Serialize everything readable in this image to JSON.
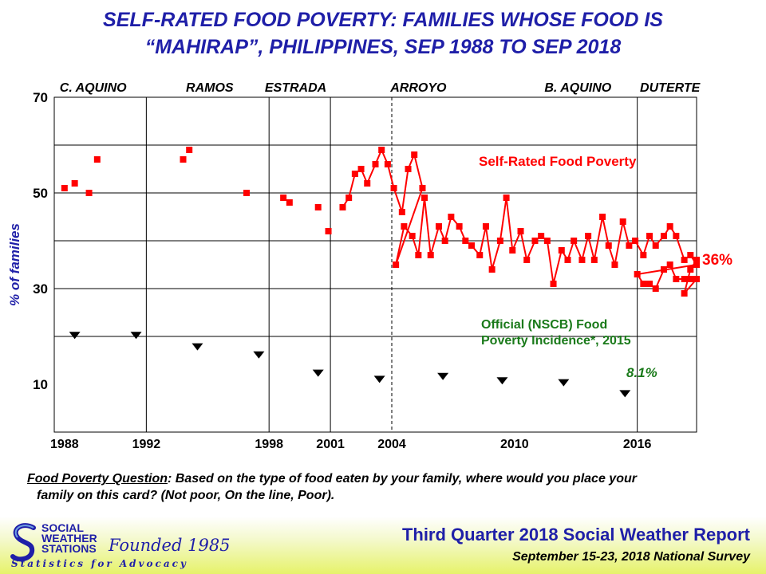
{
  "title_line1": "SELF-RATED FOOD POVERTY: FAMILIES WHOSE FOOD IS",
  "title_line2": "“MAHIRAP”, PHILIPPINES, SEP 1988 TO SEP 2018",
  "colors": {
    "title": "#1f1fa8",
    "self_rated": "#ff0000",
    "official": "#000000",
    "official_label": "#1a7a1a",
    "footer_accent": "#e6f26a"
  },
  "chart_data": {
    "type": "scatter",
    "ylabel": "% of families",
    "ylim": [
      0,
      70
    ],
    "xlim": [
      1987.5,
      2018.9
    ],
    "yticks": [
      10,
      30,
      50,
      70
    ],
    "xticks": [
      {
        "value": 1988,
        "label": "1988"
      },
      {
        "value": 1992,
        "label": "1992"
      },
      {
        "value": 1998,
        "label": "1998"
      },
      {
        "value": 2001,
        "label": "2001"
      },
      {
        "value": 2004,
        "label": "2004"
      },
      {
        "value": 2010,
        "label": "2010"
      },
      {
        "value": 2016,
        "label": "2016"
      }
    ],
    "hgrid": [
      20,
      30,
      40,
      50,
      60
    ],
    "vgrid_solid": [
      1992,
      1998,
      2001,
      2016
    ],
    "vgrid_dashed": [
      2004
    ],
    "administrations": [
      {
        "label": "C. AQUINO",
        "x": 1989.4
      },
      {
        "label": "RAMOS",
        "x": 1995.1
      },
      {
        "label": "ESTRADA",
        "x": 1999.3
      },
      {
        "label": "ARROYO",
        "x": 2005.3
      },
      {
        "label": "B. AQUINO",
        "x": 2013.1
      },
      {
        "label": "DUTERTE",
        "x": 2017.6
      }
    ],
    "series": [
      {
        "name": "Self-Rated Food Poverty",
        "style": "red-squares",
        "points": [
          [
            1988.0,
            51
          ],
          [
            1988.5,
            52
          ],
          [
            1989.2,
            50
          ],
          [
            1989.6,
            57
          ],
          [
            1993.8,
            57
          ],
          [
            1994.1,
            59
          ],
          [
            1996.9,
            50
          ],
          [
            1998.7,
            49
          ],
          [
            1999.0,
            48
          ],
          [
            2000.4,
            47
          ],
          [
            2000.9,
            42
          ]
        ]
      },
      {
        "name": "Self-Rated Food Poverty (connected)",
        "style": "red-line",
        "points": [
          [
            2001.6,
            47
          ],
          [
            2001.9,
            49
          ],
          [
            2002.2,
            54
          ],
          [
            2002.5,
            55
          ],
          [
            2002.8,
            52
          ],
          [
            2003.2,
            56
          ],
          [
            2003.5,
            59
          ],
          [
            2003.8,
            56
          ],
          [
            2004.1,
            51
          ],
          [
            2004.5,
            46
          ],
          [
            2004.8,
            55
          ],
          [
            2005.1,
            58
          ],
          [
            2005.5,
            51
          ],
          [
            2004.2,
            35
          ],
          [
            2004.6,
            43
          ],
          [
            2005.0,
            41
          ],
          [
            2005.3,
            37
          ],
          [
            2005.6,
            49
          ],
          [
            2005.9,
            37
          ],
          [
            2006.3,
            43
          ],
          [
            2006.6,
            40
          ],
          [
            2006.9,
            45
          ],
          [
            2007.3,
            43
          ],
          [
            2007.6,
            40
          ],
          [
            2007.9,
            39
          ],
          [
            2008.3,
            37
          ],
          [
            2008.6,
            43
          ],
          [
            2008.9,
            34
          ],
          [
            2009.3,
            40
          ],
          [
            2009.6,
            49
          ],
          [
            2009.9,
            38
          ],
          [
            2010.3,
            42
          ],
          [
            2010.6,
            36
          ],
          [
            2011.0,
            40
          ],
          [
            2011.3,
            41
          ],
          [
            2011.6,
            40
          ],
          [
            2011.9,
            31
          ],
          [
            2012.3,
            38
          ],
          [
            2012.6,
            36
          ],
          [
            2012.9,
            40
          ],
          [
            2013.3,
            36
          ],
          [
            2013.6,
            41
          ],
          [
            2013.9,
            36
          ],
          [
            2014.3,
            45
          ],
          [
            2014.6,
            39
          ],
          [
            2014.9,
            35
          ],
          [
            2015.3,
            44
          ],
          [
            2015.6,
            39
          ],
          [
            2015.9,
            40
          ],
          [
            2016.3,
            37
          ],
          [
            2016.6,
            41
          ],
          [
            2016.9,
            39
          ],
          [
            2017.3,
            41
          ],
          [
            2017.6,
            43
          ],
          [
            2017.9,
            41
          ],
          [
            2018.3,
            36
          ],
          [
            2018.6,
            37
          ],
          [
            2018.9,
            35
          ],
          [
            2016.0,
            33
          ],
          [
            2016.3,
            31
          ],
          [
            2016.6,
            31
          ],
          [
            2016.9,
            30
          ],
          [
            2017.3,
            34
          ],
          [
            2017.6,
            35
          ],
          [
            2017.9,
            32
          ],
          [
            2018.3,
            32
          ],
          [
            2018.6,
            32
          ],
          [
            2018.9,
            32
          ],
          [
            2018.3,
            29
          ],
          [
            2018.6,
            34
          ],
          [
            2018.9,
            36
          ]
        ]
      },
      {
        "name": "Official (NSCB) Food Poverty Incidence*, 2015",
        "style": "black-triangles",
        "points": [
          [
            1988.5,
            20.3
          ],
          [
            1991.5,
            20.3
          ],
          [
            1994.5,
            17.9
          ],
          [
            1997.5,
            16.2
          ],
          [
            2000.4,
            12.4
          ],
          [
            2003.4,
            11.1
          ],
          [
            2006.5,
            11.7
          ],
          [
            2009.4,
            10.8
          ],
          [
            2012.4,
            10.4
          ],
          [
            2015.4,
            8.1
          ]
        ]
      }
    ],
    "annotations": [
      {
        "text": "Self-Rated Food Poverty",
        "color": "#ff0000"
      },
      {
        "text": "36%",
        "color": "#ff0000"
      },
      {
        "text": "Official (NSCB) Food",
        "color": "#1a7a1a"
      },
      {
        "text": "Poverty Incidence*, 2015",
        "color": "#1a7a1a"
      },
      {
        "text": "8.1%",
        "color": "#1a7a1a"
      }
    ]
  },
  "question": {
    "label": "Food Poverty Question",
    "line1_rest": ":  Based on the type of food eaten by your family, where would you place your",
    "line2": "family on this card?  (Not poor, On the line, Poor)."
  },
  "footer": {
    "logo_lines": [
      "SOCIAL",
      "WEATHER",
      "STATIONS"
    ],
    "founded": "Founded 1985",
    "tagline": "Statistics for Advocacy",
    "report_title": "Third Quarter 2018 Social Weather Report",
    "report_sub": "September 15-23, 2018 National Survey"
  }
}
